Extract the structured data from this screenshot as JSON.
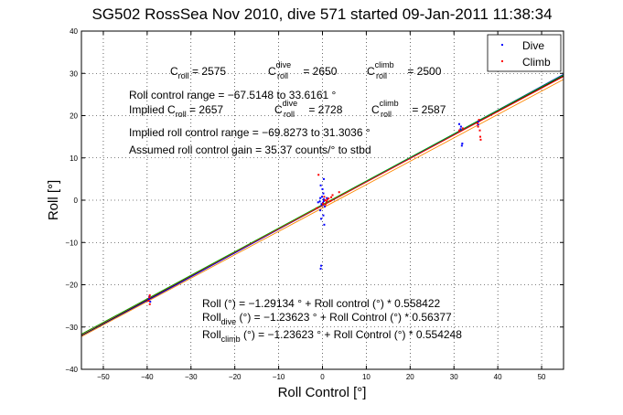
{
  "chart_data": {
    "type": "scatter",
    "title": "SG502 RossSea Nov 2010, dive 571 started 09-Jan-2011 11:38:34",
    "xlabel": "Roll Control [°]",
    "ylabel": "Roll [°]",
    "xlim": [
      -55,
      55
    ],
    "ylim": [
      -40,
      40
    ],
    "xticks": [
      -50,
      -40,
      -30,
      -20,
      -10,
      0,
      10,
      20,
      30,
      40,
      50
    ],
    "yticks": [
      -40,
      -30,
      -20,
      -10,
      0,
      10,
      20,
      30,
      40
    ],
    "xtick_labels": [
      "−50",
      "−40",
      "−30",
      "−20",
      "−10",
      "0",
      "10",
      "20",
      "30",
      "40",
      "50"
    ],
    "ytick_labels": [
      "−40",
      "−30",
      "−20",
      "−10",
      "0",
      "10",
      "20",
      "30",
      "40"
    ],
    "grid": true,
    "legend_position": "top-right",
    "series": [
      {
        "name": "Dive",
        "color": "#0000ff",
        "points": [
          [
            -39.5,
            -22.8
          ],
          [
            -39.6,
            -23.4
          ],
          [
            -39.3,
            -24.0
          ],
          [
            -0.3,
            -15.5
          ],
          [
            -0.4,
            -16.2
          ],
          [
            -0.5,
            -2.4
          ],
          [
            -0.2,
            -1.0
          ],
          [
            0.1,
            -0.6
          ],
          [
            0.3,
            0.2
          ],
          [
            -0.6,
            -0.3
          ],
          [
            0.5,
            -1.5
          ],
          [
            -0.1,
            0.8
          ],
          [
            0.2,
            1.6
          ],
          [
            0.0,
            2.6
          ],
          [
            -0.4,
            3.5
          ],
          [
            0.2,
            -3.6
          ],
          [
            -0.3,
            -4.4
          ],
          [
            0.4,
            -5.8
          ],
          [
            0.3,
            5.0
          ],
          [
            -1.0,
            -0.5
          ],
          [
            1.0,
            0.5
          ],
          [
            -0.2,
            -0.9
          ],
          [
            -0.5,
            0.5
          ],
          [
            0.3,
            -0.2
          ],
          [
            31.5,
            16.8
          ],
          [
            31.6,
            17.4
          ],
          [
            31.8,
            12.9
          ],
          [
            31.9,
            13.4
          ],
          [
            31.2,
            18.0
          ],
          [
            35.5,
            17.9
          ],
          [
            35.6,
            18.6
          ]
        ]
      },
      {
        "name": "Climb",
        "color": "#ff0000",
        "points": [
          [
            -39.4,
            -22.5
          ],
          [
            -39.5,
            -23.0
          ],
          [
            -39.7,
            -23.8
          ],
          [
            -39.4,
            -24.6
          ],
          [
            0.6,
            0.0
          ],
          [
            0.9,
            -0.3
          ],
          [
            1.4,
            0.4
          ],
          [
            1.8,
            -0.2
          ],
          [
            0.4,
            0.8
          ],
          [
            0.7,
            -1.0
          ],
          [
            2.3,
            1.2
          ],
          [
            3.8,
            1.9
          ],
          [
            -0.9,
            6.0
          ],
          [
            -1.3,
            -1.9
          ],
          [
            0.1,
            -0.8
          ],
          [
            1.1,
            0.1
          ],
          [
            2.0,
            0.7
          ],
          [
            31.2,
            16.5
          ],
          [
            32.0,
            17.0
          ],
          [
            35.4,
            18.2
          ],
          [
            35.7,
            19.0
          ],
          [
            36.0,
            15.0
          ],
          [
            36.1,
            14.3
          ],
          [
            35.5,
            17.4
          ],
          [
            35.9,
            16.5
          ]
        ]
      }
    ],
    "fit_lines": [
      {
        "label": "Roll (°) = −1.29134 ° + Roll control (°) * 0.558422",
        "intercept": -1.29134,
        "slope": 0.558422,
        "color": "#000000"
      },
      {
        "label": "Roll dive (°) = −1.23623 ° + Roll Control (°) * 0.56377",
        "intercept": -1.23623,
        "slope": 0.56377,
        "color": "#0000ff"
      },
      {
        "label": "Roll climb (°) = −1.23623 ° + Roll Control (°) * 0.554248",
        "intercept": -1.23623,
        "slope": 0.554248,
        "color": "#ff0000"
      },
      {
        "label": "",
        "intercept": -1.02,
        "slope": 0.5575,
        "color": "#00aa00"
      },
      {
        "label": "",
        "intercept": -1.85,
        "slope": 0.553,
        "color": "#ff8800"
      }
    ],
    "annotations": {
      "c_roll": {
        "main": "C",
        "sub": "roll",
        "value": " = 2575"
      },
      "c_dive": {
        "main": "C",
        "sup": "dive",
        "sub": "roll",
        "value": " = 2650"
      },
      "c_climb": {
        "main": "C",
        "sup": "climb",
        "sub": "roll",
        "value": " = 2500"
      },
      "range": "Roll control range = −67.5148 to 33.6161 °",
      "implied_prefix": "Implied C",
      "implied_sub": "roll",
      "implied_value": " = 2657",
      "implied_dive": {
        "main": "C",
        "sup": "dive",
        "sub": "roll",
        "value": " = 2728"
      },
      "implied_climb": {
        "main": "C",
        "sup": "climb",
        "sub": "roll",
        "value": " = 2587"
      },
      "implied_range": "Implied roll control range = −69.8273 to 31.3036 °",
      "gain": "Assumed roll control gain = 35.37 counts/° to stbd",
      "eq_all": "Roll (°) = −1.29134 ° + Roll control (°) * 0.558422",
      "eq_dive_main": "Roll",
      "eq_dive_sub": "dive",
      "eq_dive_rest": " (°) = −1.23623 ° + Roll Control (°) * 0.56377",
      "eq_climb_main": "Roll",
      "eq_climb_sub": "climb",
      "eq_climb_rest": " (°) = −1.23623 ° + Roll Control (°) * 0.554248"
    }
  }
}
